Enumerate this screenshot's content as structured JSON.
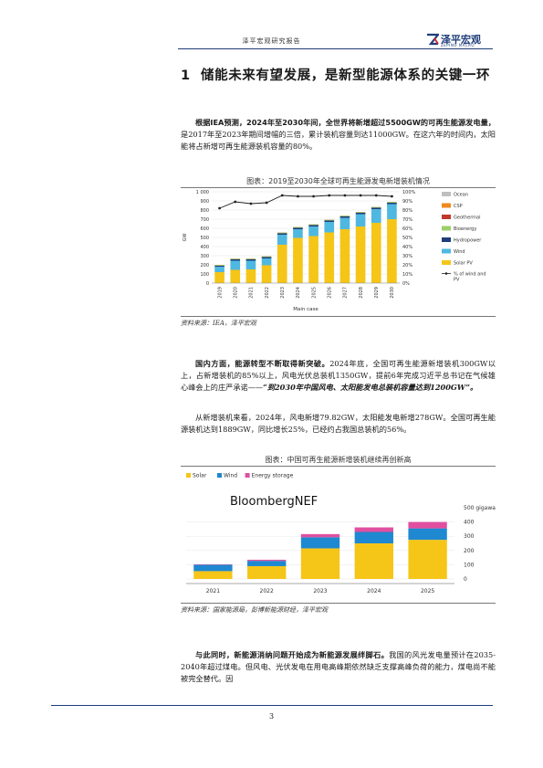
{
  "header": {
    "title": "泽平宏观研究报告",
    "logo_name": "泽平宏观",
    "logo_sub": "ZEPING MACRO"
  },
  "section": {
    "number": "1",
    "title": "储能未来有望发展，是新型能源体系的关键一环"
  },
  "para1": {
    "bold": "根据IEA预测，2024年至2030年间，全世界将新增超过5500GW的可再生能源发电量，",
    "rest": "是2017年至2023年期间增幅的三倍，累计装机容量到达11000GW。在这六年的时间内，太阳能将占新增可再生能源装机容量的80%。"
  },
  "figure1": {
    "caption": "图表：2019至2030年全球可再生能源发电新增装机情况",
    "source": "资料来源：IEA，泽平宏观"
  },
  "para2": {
    "bold": "国内方面，能源转型不断取得新突破。",
    "rest": "2024年底，全国可再生能源新增装机300GW以上，占新增装机的85%以上，风电光伏总装机1350GW，提前6年完成习近平总书记在气候雄心峰会上的庄严承诺——",
    "quote": "“到2030年中国风电、太阳能发电总装机容量达到1200GW”。"
  },
  "para3": {
    "text": "从新增装机来看，2024年，风电新增79.82GW，太阳能发电新增278GW。全国可再生能源装机达到1889GW，同比增长25%，已经约占我国总装机的56%。"
  },
  "figure2": {
    "caption": "图表：中国可再生能源新增装机继续再创新高",
    "source": "资料来源：国家能源局，彭博新能源财经，泽平宏观"
  },
  "para4": {
    "bold": "与此同时，新能源消纳问题开始成为新能源发展绊脚石。",
    "rest": "我国的风光发电量预计在2035-2040年超过煤电。但风电、光伏发电在用电高峰期依然缺乏支撑高峰负荷的能力，煤电尚不能被完全替代。因"
  },
  "page_number": "3",
  "colors": {
    "navy": "#1f3d7a",
    "solar": "#f5c518",
    "wind": "#29a8dc",
    "storage": "#e04fa0"
  },
  "chart_data": [
    {
      "type": "bar",
      "stacked": true,
      "categories": [
        "2019",
        "2020",
        "2021",
        "2022",
        "2023",
        "2024",
        "2025",
        "2026",
        "2027",
        "2028",
        "2029",
        "2030"
      ],
      "xlabel": "Main case",
      "ylabel": "GW",
      "ylim": [
        0,
        1000
      ],
      "yticks": [
        "0",
        "100",
        "200",
        "300",
        "400",
        "500",
        "600",
        "700",
        "800",
        "900",
        "1 000"
      ],
      "y2lim": [
        0,
        100
      ],
      "y2ticks": [
        "0%",
        "10%",
        "20%",
        "30%",
        "40%",
        "50%",
        "60%",
        "70%",
        "80%",
        "90%",
        "100%"
      ],
      "legend_position": "right",
      "series": [
        {
          "name": "Solar PV",
          "color": "#f5c518",
          "values": [
            120,
            145,
            150,
            195,
            420,
            495,
            515,
            555,
            590,
            620,
            660,
            700
          ]
        },
        {
          "name": "Wind",
          "color": "#4fb8e0",
          "values": [
            60,
            100,
            95,
            75,
            110,
            95,
            105,
            115,
            125,
            135,
            150,
            165
          ]
        },
        {
          "name": "Hydropower",
          "color": "#1f3d7a",
          "values": [
            10,
            15,
            15,
            15,
            15,
            15,
            15,
            15,
            15,
            15,
            15,
            15
          ]
        },
        {
          "name": "Bioenergy",
          "color": "#9ccf6a",
          "values": [
            8,
            8,
            8,
            8,
            8,
            8,
            8,
            8,
            8,
            8,
            8,
            8
          ]
        },
        {
          "name": "Geothermal",
          "color": "#c0392b",
          "values": [
            1,
            1,
            1,
            1,
            1,
            1,
            1,
            1,
            1,
            1,
            1,
            1
          ]
        },
        {
          "name": "CSP",
          "color": "#f08a1c",
          "values": [
            1,
            1,
            1,
            1,
            1,
            1,
            1,
            1,
            1,
            1,
            1,
            1
          ]
        },
        {
          "name": "Ocean",
          "color": "#bfbfbf",
          "values": [
            0,
            0,
            0,
            0,
            0,
            0,
            0,
            0,
            0,
            0,
            0,
            0
          ]
        }
      ],
      "line": {
        "name": "% of wind and PV",
        "axis": "right",
        "values": [
          82,
          89,
          87,
          88,
          96,
          95,
          95,
          96,
          96,
          96,
          96,
          95
        ]
      }
    },
    {
      "type": "bar",
      "stacked": true,
      "brand": "BloombergNEF",
      "categories": [
        "2021",
        "2022",
        "2023",
        "2024",
        "2025"
      ],
      "ylabel": "500 gigawatts",
      "ylim": [
        0,
        500
      ],
      "yticks": [
        "0",
        "100",
        "200",
        "300",
        "400"
      ],
      "legend_position": "top-left",
      "series": [
        {
          "name": "Solar",
          "color": "#f5c518",
          "values": [
            55,
            90,
            215,
            250,
            275
          ]
        },
        {
          "name": "Wind",
          "color": "#1e88d0",
          "values": [
            45,
            37,
            78,
            80,
            80
          ]
        },
        {
          "name": "Energy storage",
          "color": "#e04fa0",
          "values": [
            3,
            8,
            22,
            32,
            45
          ]
        }
      ]
    }
  ]
}
